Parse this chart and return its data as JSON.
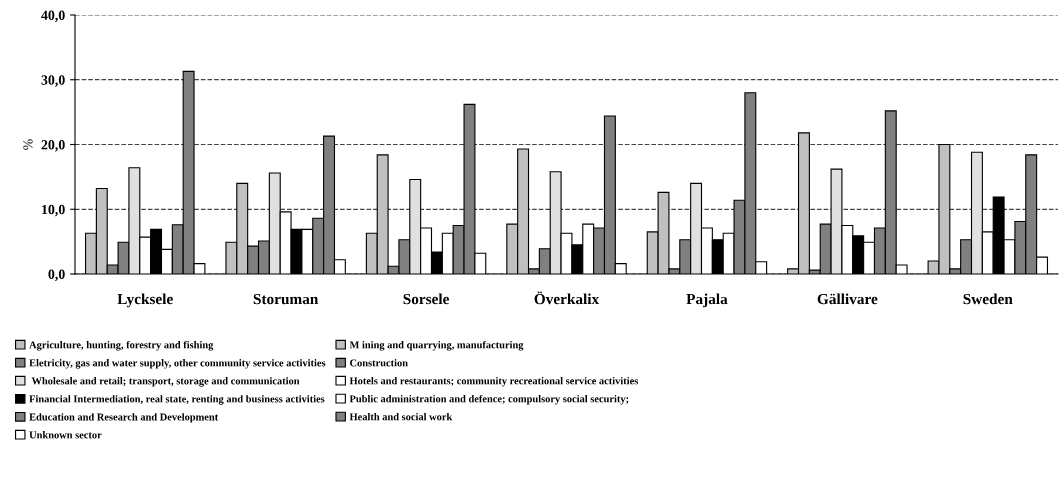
{
  "chart_data": {
    "type": "bar",
    "ylabel": "%",
    "categories": [
      "Lycksele",
      "Storuman",
      "Sorsele",
      "Överkalix",
      "Pajala",
      "Gällivare",
      "Sweden"
    ],
    "series": [
      {
        "name": "Agriculture, hunting, forestry and fishing",
        "color": "#c0c0c0",
        "values": [
          6.3,
          4.9,
          6.3,
          7.7,
          6.5,
          0.8,
          2.0
        ]
      },
      {
        "name": "M ining and quarrying, manufacturing",
        "color": "#c0c0c0",
        "values": [
          13.2,
          14.0,
          18.4,
          19.3,
          12.6,
          21.8,
          20.0
        ]
      },
      {
        "name": "Eletricity, gas and water supply, other community service activities",
        "color": "#808080",
        "values": [
          1.4,
          4.3,
          1.2,
          0.8,
          0.8,
          0.6,
          0.8
        ]
      },
      {
        "name": "Construction",
        "color": "#808080",
        "values": [
          4.9,
          5.1,
          5.3,
          3.9,
          5.3,
          7.7,
          5.3
        ]
      },
      {
        "name": " Wholesale and retail; transport, storage and communication",
        "color": "#e0e0e0",
        "values": [
          16.4,
          15.6,
          14.6,
          15.8,
          14.0,
          16.2,
          18.8
        ]
      },
      {
        "name": "Hotels and restaurants; community recreational service activities",
        "color": "#ffffff",
        "values": [
          5.7,
          9.6,
          7.1,
          6.3,
          7.1,
          7.5,
          6.5
        ]
      },
      {
        "name": "Financial Intermediation, real state, renting and business activities",
        "color": "#000000",
        "values": [
          6.9,
          6.9,
          3.4,
          4.5,
          5.3,
          5.9,
          11.9
        ]
      },
      {
        "name": "Public administration and defence; compulsory social security;",
        "color": "#ffffff",
        "values": [
          3.8,
          6.9,
          6.3,
          7.7,
          6.3,
          4.9,
          5.3
        ]
      },
      {
        "name": "Education and Research and Development",
        "color": "#808080",
        "values": [
          7.6,
          8.6,
          7.5,
          7.1,
          11.4,
          7.1,
          8.1
        ]
      },
      {
        "name": "Health and social work",
        "color": "#808080",
        "values": [
          31.3,
          21.3,
          26.2,
          24.4,
          28.0,
          25.2,
          18.4
        ]
      },
      {
        "name": "Unknown sector",
        "color": "#ffffff",
        "values": [
          1.6,
          2.2,
          3.2,
          1.6,
          1.9,
          1.4,
          2.6
        ]
      }
    ],
    "ylim": [
      0,
      40
    ],
    "yticks": [
      {
        "value": 0,
        "label": "0,0"
      },
      {
        "value": 10,
        "label": "10,0"
      },
      {
        "value": 20,
        "label": "20,0"
      },
      {
        "value": 30,
        "label": "30,0"
      },
      {
        "value": 40,
        "label": "40,0"
      }
    ],
    "grid": "y",
    "legend": "bottom"
  }
}
